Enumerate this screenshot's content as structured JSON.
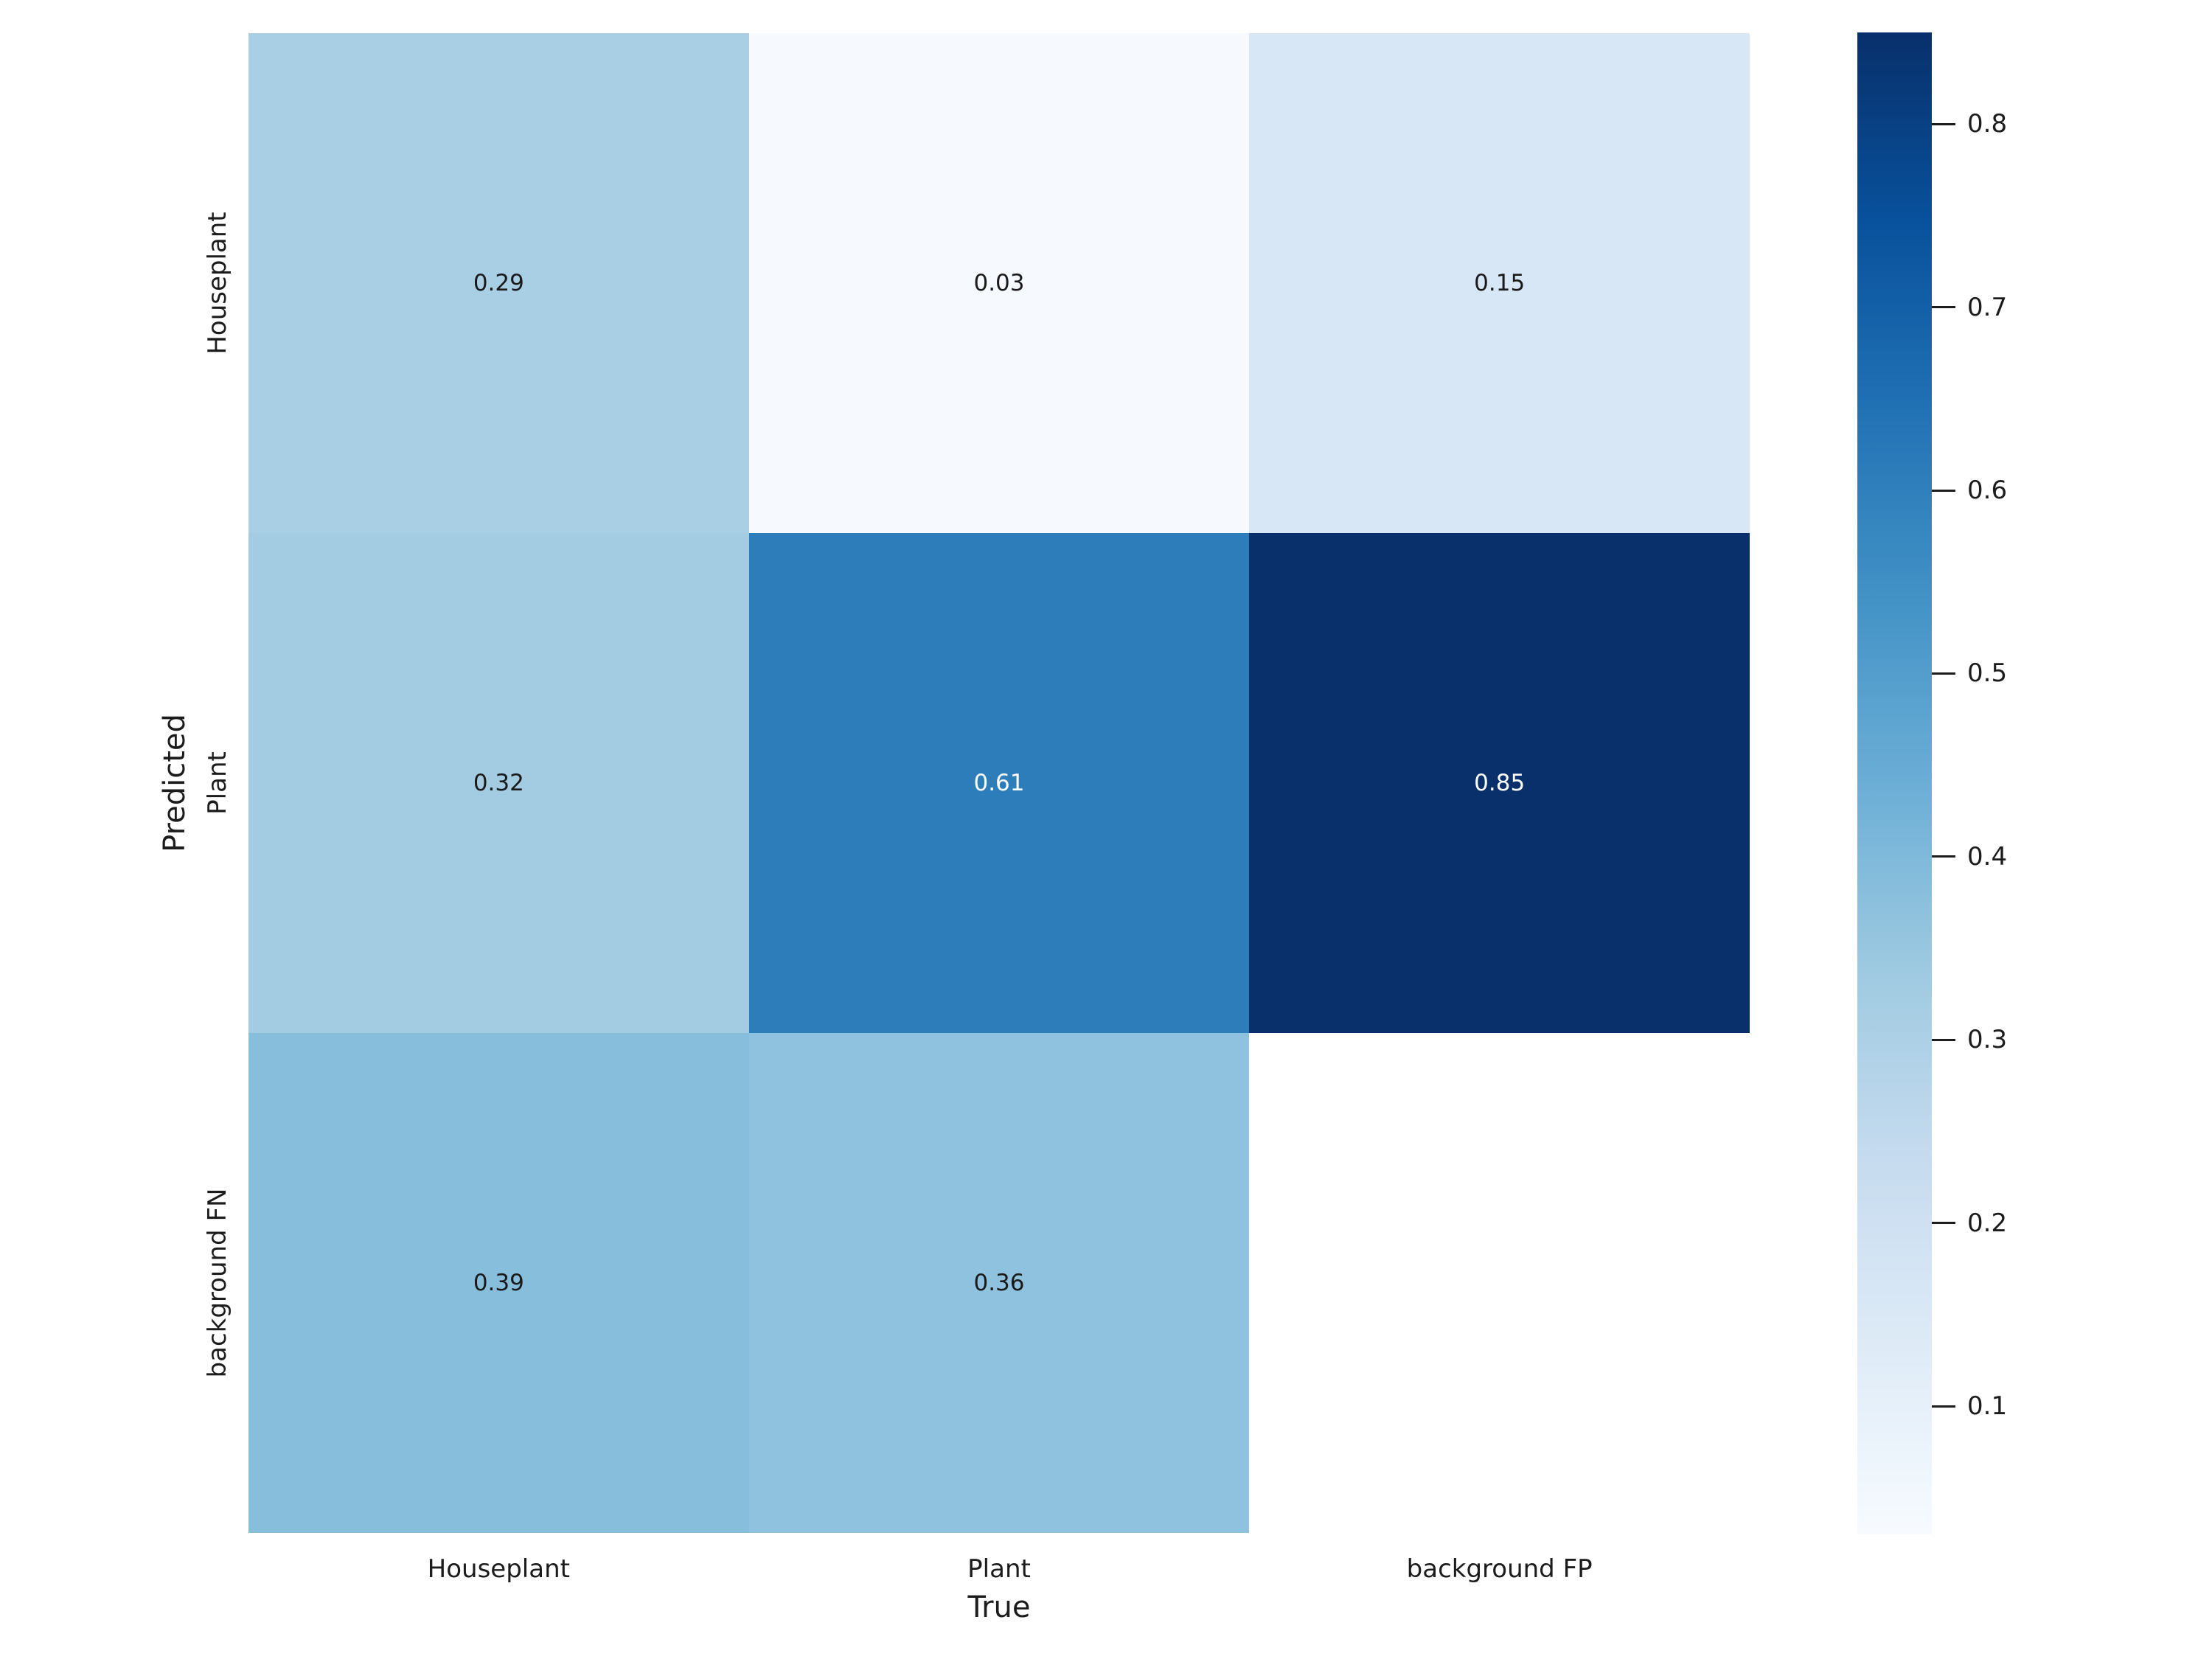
{
  "chart_data": {
    "type": "heatmap",
    "title": "",
    "xlabel": "True",
    "ylabel": "Predicted",
    "x_categories": [
      "Houseplant",
      "Plant",
      "background FP"
    ],
    "y_categories": [
      "Houseplant",
      "Plant",
      "background FN"
    ],
    "values": [
      [
        0.29,
        0.03,
        0.15
      ],
      [
        0.32,
        0.61,
        0.85
      ],
      [
        0.39,
        0.36,
        null
      ]
    ],
    "cells": [
      [
        {
          "label": "0.29",
          "bg": "#a9cfe5",
          "fg": "#1a1a1a"
        },
        {
          "label": "0.03",
          "bg": "#f6fafe",
          "fg": "#1a1a1a"
        },
        {
          "label": "0.15",
          "bg": "#d8e7f5",
          "fg": "#1a1a1a"
        }
      ],
      [
        {
          "label": "0.32",
          "bg": "#a3cce3",
          "fg": "#1a1a1a"
        },
        {
          "label": "0.61",
          "bg": "#2d7dbb",
          "fg": "#ffffff"
        },
        {
          "label": "0.85",
          "bg": "#09306b",
          "fg": "#ffffff"
        }
      ],
      [
        {
          "label": "0.39",
          "bg": "#87bedc",
          "fg": "#1a1a1a"
        },
        {
          "label": "0.36",
          "bg": "#8fc2de",
          "fg": "#1a1a1a"
        },
        {
          "label": "",
          "bg": "#ffffff",
          "fg": "#1a1a1a"
        }
      ]
    ],
    "colormap": "Blues",
    "vmin": 0.03,
    "vmax": 0.85,
    "colorbar": {
      "ticks": [
        "0.8",
        "0.7",
        "0.6",
        "0.5",
        "0.4",
        "0.3",
        "0.2",
        "0.1"
      ],
      "gradient_stops_top_to_bottom": [
        "#08306b",
        "#08519c",
        "#2171b5",
        "#4292c6",
        "#6baed6",
        "#9ecae1",
        "#c6dbef",
        "#deebf7",
        "#f7fbff"
      ]
    },
    "grid": false,
    "legend_position": "right-colorbar"
  }
}
